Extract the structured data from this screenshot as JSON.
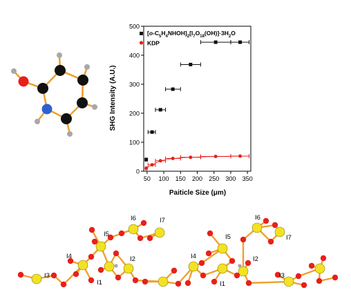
{
  "colors": {
    "bond": "#f0a030",
    "carbon": "#111111",
    "oxygen": "#e8201a",
    "nitrogen": "#3060d0",
    "hydrogen": "#a8a8a8",
    "iodine": "#f2e222",
    "series_a": "#111111",
    "series_b": "#e8201a"
  },
  "chart_data": {
    "type": "scatter",
    "xlabel": "Paiticle Size (μm)",
    "ylabel": "SHG Intensity (A.U.)",
    "xlim": [
      40,
      360
    ],
    "ylim": [
      0,
      500
    ],
    "x_ticks": [
      50,
      100,
      150,
      200,
      250,
      300,
      350
    ],
    "y_ticks": [
      0,
      100,
      200,
      300,
      400,
      500
    ],
    "legend_position": "top-left",
    "series": [
      {
        "name_parts": [
          "[",
          "o",
          "-C",
          "5",
          "H",
          "4",
          "NHOH]",
          "2",
          "[I",
          "7",
          "O",
          "18",
          "(OH)]·3H",
          "2",
          "O"
        ],
        "name_sub": [
          false,
          false,
          false,
          true,
          false,
          true,
          false,
          true,
          false,
          true,
          false,
          true,
          false,
          true,
          false
        ],
        "marker": "square",
        "points": [
          {
            "x": 47.5,
            "xmin": 45,
            "xmax": 50,
            "y": 40
          },
          {
            "x": 65,
            "xmin": 53,
            "xmax": 75,
            "y": 135
          },
          {
            "x": 90,
            "xmin": 75,
            "xmax": 105,
            "y": 212
          },
          {
            "x": 127,
            "xmin": 105,
            "xmax": 150,
            "y": 283
          },
          {
            "x": 180,
            "xmin": 150,
            "xmax": 210,
            "y": 368
          },
          {
            "x": 255,
            "xmin": 210,
            "xmax": 300,
            "y": 445
          },
          {
            "x": 328,
            "xmin": 300,
            "xmax": 355,
            "y": 445
          }
        ]
      },
      {
        "name": "KDP",
        "marker": "circle",
        "points": [
          {
            "x": 47.5,
            "xmin": 45,
            "xmax": 50,
            "y": 10
          },
          {
            "x": 65,
            "xmin": 53,
            "xmax": 75,
            "y": 22
          },
          {
            "x": 90,
            "xmin": 75,
            "xmax": 105,
            "y": 36
          },
          {
            "x": 127,
            "xmin": 105,
            "xmax": 150,
            "y": 44
          },
          {
            "x": 180,
            "xmin": 150,
            "xmax": 210,
            "y": 48
          },
          {
            "x": 255,
            "xmin": 210,
            "xmax": 300,
            "y": 51
          },
          {
            "x": 328,
            "xmin": 300,
            "xmax": 355,
            "y": 52
          }
        ]
      }
    ]
  },
  "structure_labels": [
    "I1",
    "I2",
    "I3",
    "I4",
    "I5",
    "I6",
    "I7",
    "I1",
    "I2",
    "I3",
    "I4",
    "I5",
    "I6",
    "I7"
  ]
}
